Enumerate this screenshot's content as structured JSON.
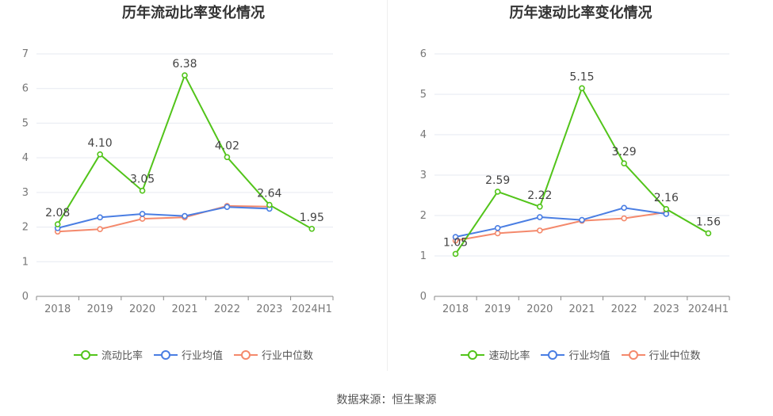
{
  "source": "数据来源：恒生聚源",
  "chart_data": [
    {
      "type": "line",
      "title": "历年流动比率变化情况",
      "categories": [
        "2018",
        "2019",
        "2020",
        "2021",
        "2022",
        "2023",
        "2024H1"
      ],
      "ylim": [
        0,
        7
      ],
      "yticks": [
        "0",
        "1",
        "2",
        "3",
        "4",
        "5",
        "6",
        "7"
      ],
      "grid": true,
      "legend": "bottom-center",
      "series": [
        {
          "name": "流动比率",
          "color": "#52c41a",
          "labeled": true,
          "values": [
            2.08,
            4.1,
            3.05,
            6.38,
            4.02,
            2.64,
            1.95
          ],
          "labels": [
            "2.08",
            "4.10",
            "3.05",
            "6.38",
            "4.02",
            "2.64",
            "1.95"
          ]
        },
        {
          "name": "行业均值",
          "color": "#4a7ee3",
          "labeled": false,
          "values": [
            1.97,
            2.28,
            2.38,
            2.32,
            2.58,
            2.53,
            null
          ]
        },
        {
          "name": "行业中位数",
          "color": "#f4896c",
          "labeled": false,
          "values": [
            1.87,
            1.94,
            2.24,
            2.28,
            2.61,
            2.59,
            null
          ]
        }
      ]
    },
    {
      "type": "line",
      "title": "历年速动比率变化情况",
      "categories": [
        "2018",
        "2019",
        "2020",
        "2021",
        "2022",
        "2023",
        "2024H1"
      ],
      "ylim": [
        0,
        6
      ],
      "yticks": [
        "0",
        "1",
        "2",
        "3",
        "4",
        "5",
        "6"
      ],
      "grid": true,
      "legend": "bottom-center",
      "series": [
        {
          "name": "速动比率",
          "color": "#52c41a",
          "labeled": true,
          "values": [
            1.05,
            2.59,
            2.22,
            5.15,
            3.29,
            2.16,
            1.56
          ],
          "labels": [
            "1.05",
            "2.59",
            "2.22",
            "5.15",
            "3.29",
            "2.16",
            "1.56"
          ]
        },
        {
          "name": "行业均值",
          "color": "#4a7ee3",
          "labeled": false,
          "values": [
            1.47,
            1.69,
            1.96,
            1.89,
            2.19,
            2.04,
            null
          ]
        },
        {
          "name": "行业中位数",
          "color": "#f4896c",
          "labeled": false,
          "values": [
            1.38,
            1.56,
            1.63,
            1.87,
            1.93,
            2.08,
            null
          ]
        }
      ]
    }
  ]
}
